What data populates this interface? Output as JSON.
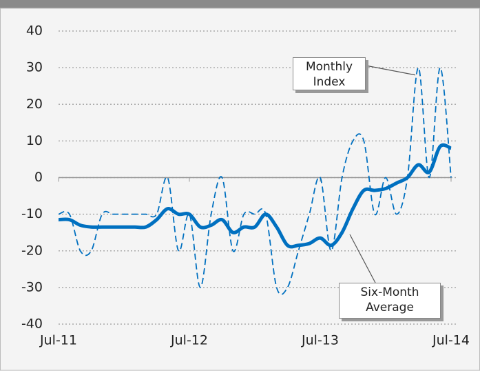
{
  "chart_data": {
    "type": "line",
    "categories": [
      "Jul-11",
      null,
      null,
      null,
      null,
      null,
      null,
      null,
      null,
      null,
      null,
      null,
      "Jul-12",
      null,
      null,
      null,
      null,
      null,
      null,
      null,
      null,
      null,
      null,
      null,
      "Jul-13",
      null,
      null,
      null,
      null,
      null,
      null,
      null,
      null,
      null,
      null,
      null,
      "Jul-14"
    ],
    "series": [
      {
        "name": "Monthly Index",
        "color": "#0070c0",
        "dashed": true,
        "values": [
          -10,
          -10,
          -20,
          -20,
          -10,
          -10,
          -10,
          -10,
          -10,
          -10,
          0,
          -20,
          -10,
          -30,
          -10,
          0,
          -20,
          -10,
          -10,
          -10,
          -30,
          -30,
          -20,
          -10,
          0,
          -20,
          0,
          10,
          10,
          -10,
          0,
          -10,
          0,
          30,
          0,
          30,
          0
        ]
      },
      {
        "name": "Six-Month Average",
        "color": "#0070c0",
        "dashed": false,
        "values": [
          -11.5,
          -11.5,
          -13,
          -13.5,
          -13.5,
          -13.5,
          -13.5,
          -13.5,
          -13.5,
          -11.5,
          -8.5,
          -10,
          -10,
          -13.5,
          -13,
          -11.5,
          -15,
          -13.5,
          -13.5,
          -10,
          -13.5,
          -18.5,
          -18.5,
          -18,
          -16.5,
          -18.5,
          -15,
          -8.5,
          -3.5,
          -3.5,
          -3,
          -1.5,
          0,
          3.5,
          1.5,
          8.5,
          8
        ]
      }
    ],
    "ylim": [
      -40,
      40
    ],
    "yticks": [
      -40,
      -30,
      -20,
      -10,
      0,
      10,
      20,
      30,
      40
    ],
    "grid": true
  }
}
